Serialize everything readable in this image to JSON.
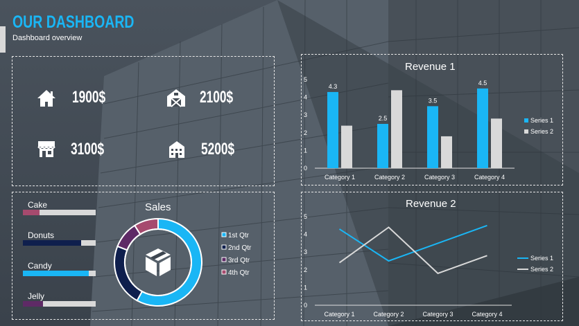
{
  "header": {
    "title": "OUR DASHBOARD",
    "subtitle": "Dashboard overview"
  },
  "kpis": [
    {
      "icon": "house-icon",
      "value": "1900$"
    },
    {
      "icon": "barn-icon",
      "value": "2100$"
    },
    {
      "icon": "shop-icon",
      "value": "3100$"
    },
    {
      "icon": "building-icon",
      "value": "5200$"
    }
  ],
  "progress": [
    {
      "label": "Cake",
      "fraction": 0.23,
      "color": "#a64a6e"
    },
    {
      "label": "Donuts",
      "fraction": 0.8,
      "color": "#0f1f4d"
    },
    {
      "label": "Candy",
      "fraction": 0.9,
      "color": "#1ab6f5"
    },
    {
      "label": "Jelly",
      "fraction": 0.28,
      "color": "#5e2a66"
    }
  ],
  "sales": {
    "title": "Sales",
    "center_icon": "box-icon",
    "chart_data": {
      "type": "pie",
      "categories": [
        "1st Qtr",
        "2nd Qtr",
        "3rd Qtr",
        "4th Qtr"
      ],
      "values": [
        58,
        23,
        10,
        9
      ],
      "colors": [
        "#1ab6f5",
        "#0f1f4d",
        "#5e2a66",
        "#a64a6e"
      ],
      "legend": "right"
    }
  },
  "revenue1": {
    "title": "Revenue 1",
    "chart_data": {
      "type": "bar",
      "categories": [
        "Category 1",
        "Category 2",
        "Category 3",
        "Category 4"
      ],
      "series": [
        {
          "name": "Series 1",
          "values": [
            4.3,
            2.5,
            3.5,
            4.5
          ],
          "color": "#1ab6f5",
          "labels": [
            "4.3",
            "2.5",
            "3.5",
            "4.5"
          ]
        },
        {
          "name": "Series 2",
          "values": [
            2.4,
            4.4,
            1.8,
            2.8
          ],
          "color": "#d9d9d9"
        }
      ],
      "ylim": [
        0,
        5
      ],
      "yticks": [
        "0",
        "1",
        "2",
        "3",
        "4",
        "5"
      ],
      "legend": "right"
    }
  },
  "revenue2": {
    "title": "Revenue 2",
    "chart_data": {
      "type": "line",
      "categories": [
        "Category 1",
        "Category 2",
        "Category 3",
        "Category 4"
      ],
      "series": [
        {
          "name": "Series 1",
          "values": [
            4.3,
            2.5,
            3.5,
            4.5
          ],
          "color": "#1ab6f5"
        },
        {
          "name": "Series 2",
          "values": [
            2.4,
            4.4,
            1.8,
            2.8
          ],
          "color": "#d9d9d9"
        }
      ],
      "ylim": [
        0,
        5
      ],
      "yticks": [
        "0",
        "1",
        "2",
        "3",
        "4",
        "5"
      ],
      "legend": "right"
    }
  }
}
